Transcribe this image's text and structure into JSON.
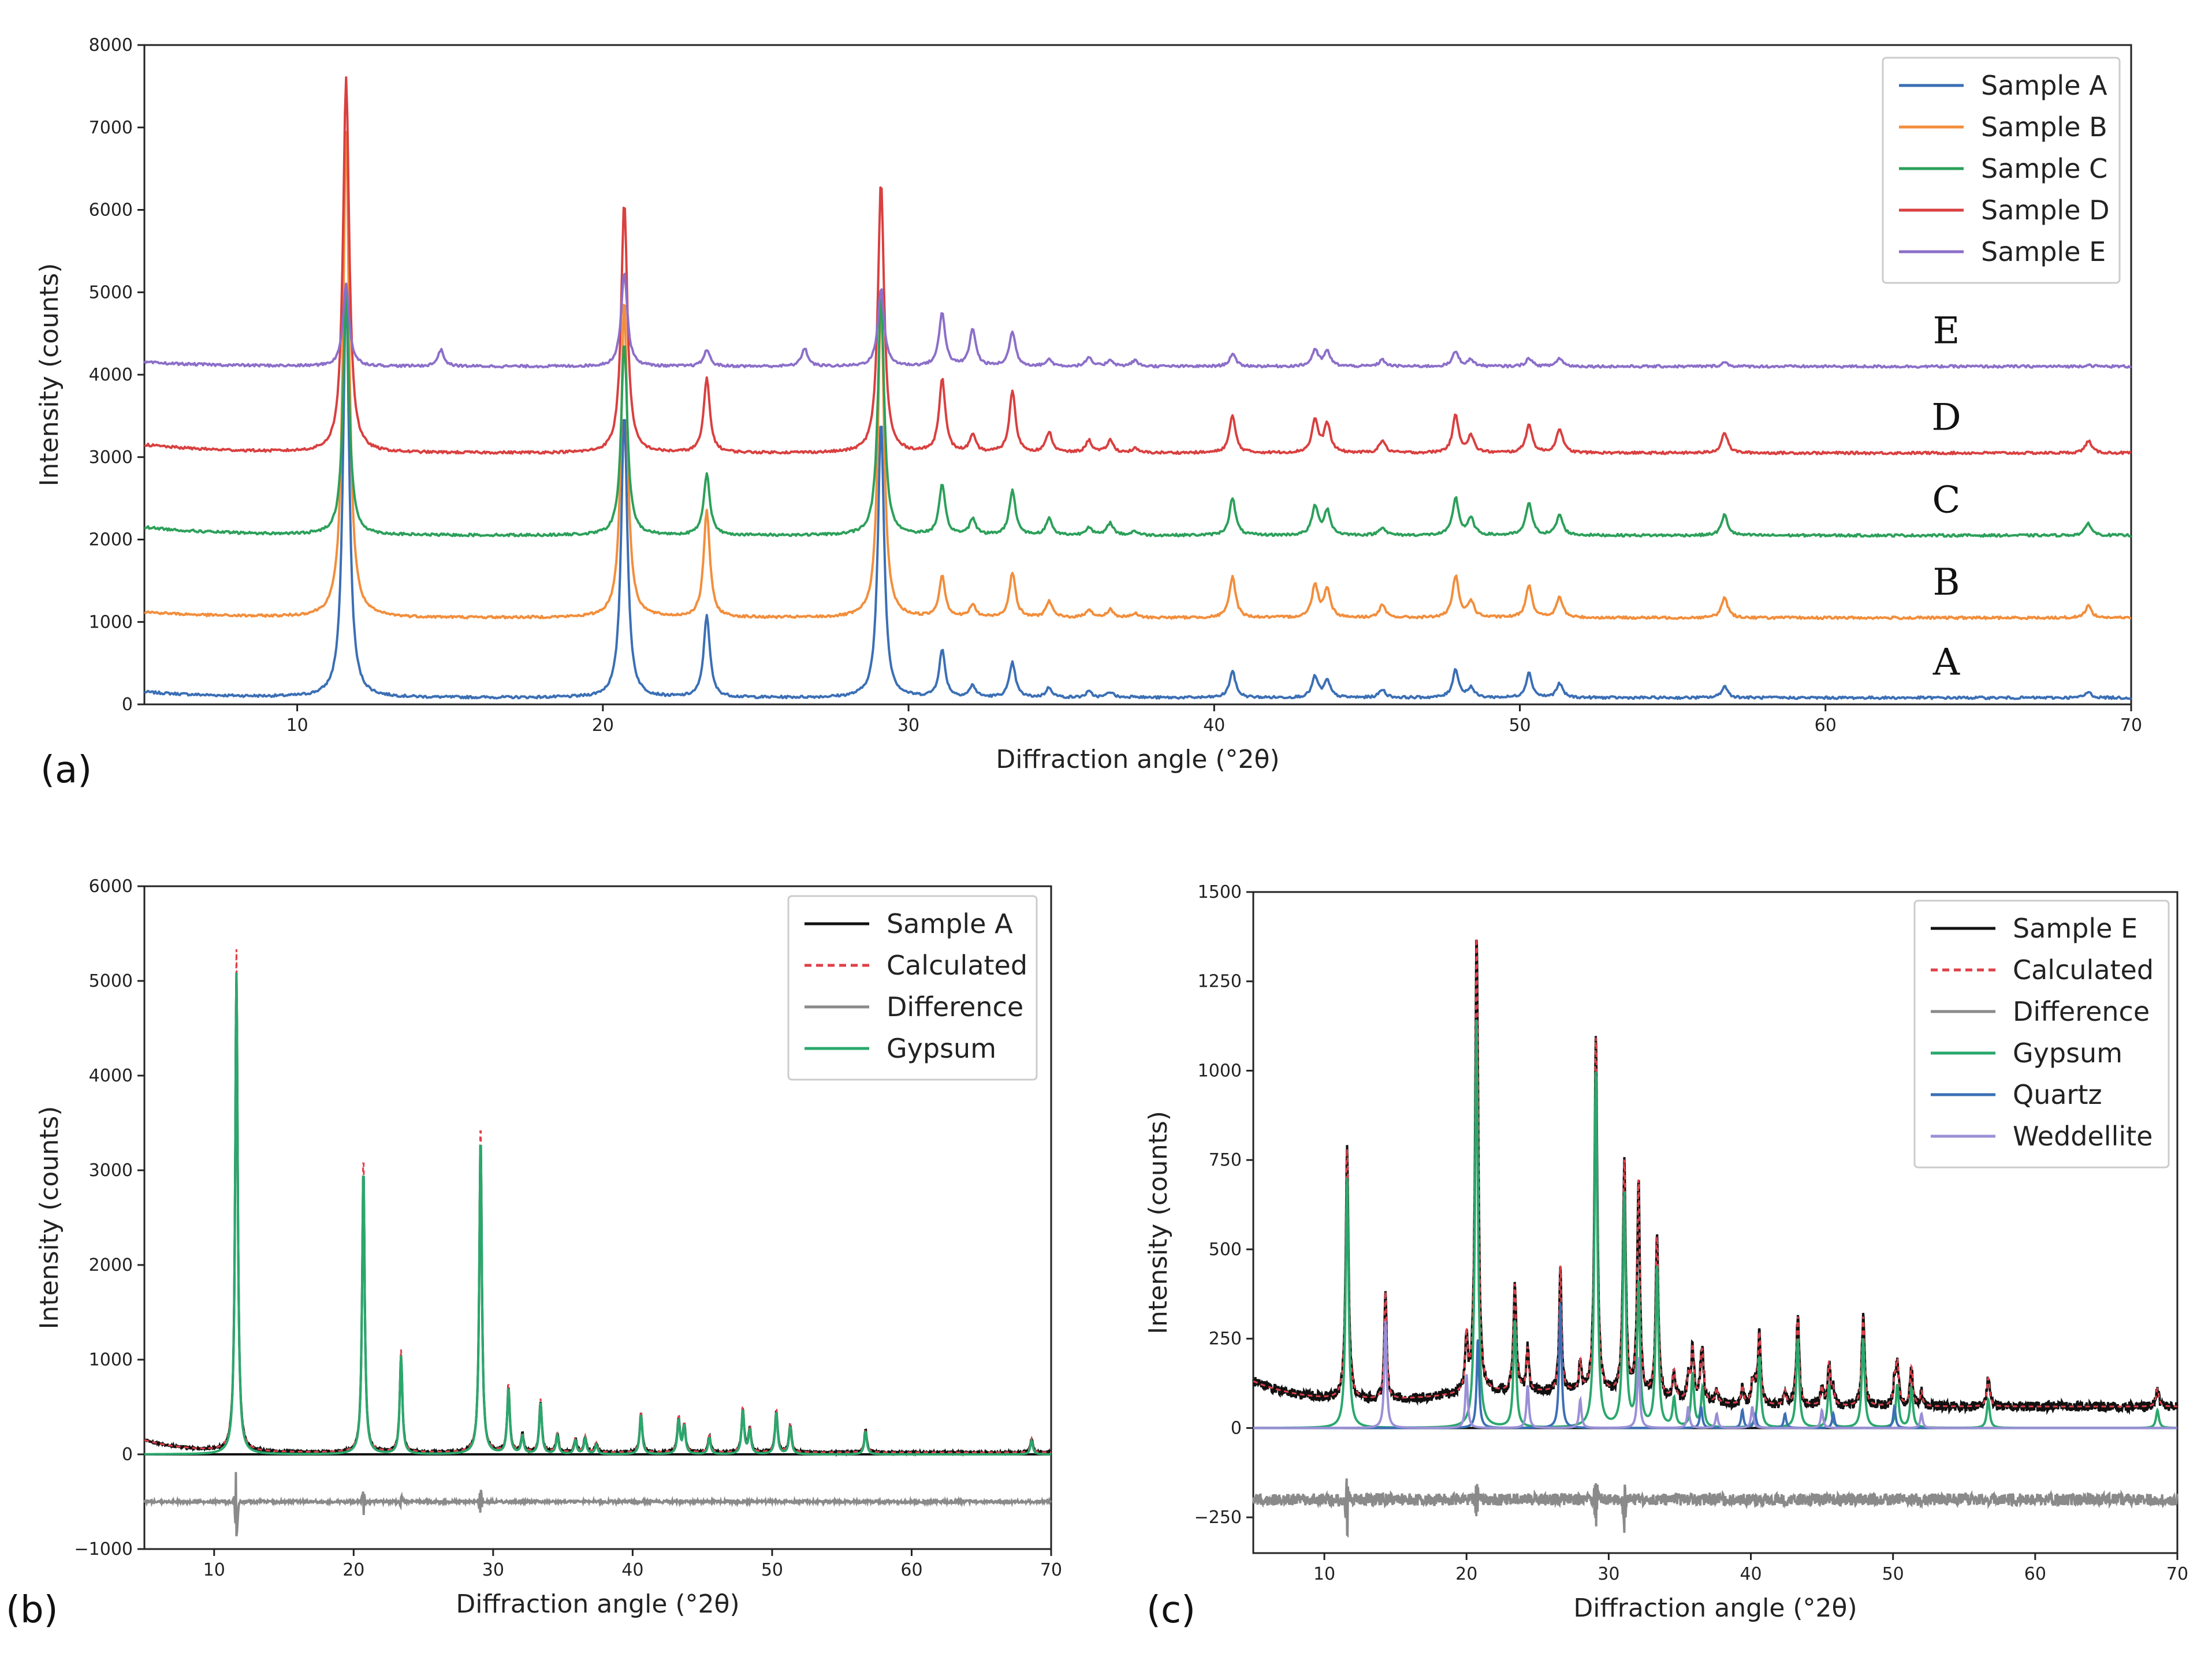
{
  "chart_data": [
    {
      "panel": "(a)",
      "type": "line",
      "xlabel": "Diffraction angle (°2θ)",
      "ylabel": "Intensity (counts)",
      "xlim": [
        5,
        70
      ],
      "ylim": [
        0,
        8000
      ],
      "xticks": [
        10,
        20,
        30,
        40,
        50,
        60,
        70
      ],
      "yticks": [
        0,
        1000,
        2000,
        3000,
        4000,
        5000,
        6000,
        7000,
        8000
      ],
      "legend_position": "top-right",
      "peak_positions": [
        11.6,
        14.7,
        20.7,
        23.4,
        26.6,
        29.1,
        31.1,
        32.1,
        33.4,
        34.6,
        35.9,
        36.6,
        37.4,
        40.6,
        43.3,
        43.7,
        45.5,
        47.9,
        48.4,
        50.3,
        51.3,
        56.7,
        68.6
      ],
      "series": [
        {
          "name": "Sample A",
          "trace_label": "A",
          "color": "#3b6fb5",
          "baseline": 80,
          "start": 150,
          "peaks": [
            [
              11.6,
              5050
            ],
            [
              20.7,
              3550
            ],
            [
              23.4,
              1080
            ],
            [
              29.1,
              3450
            ],
            [
              31.1,
              650
            ],
            [
              32.1,
              220
            ],
            [
              33.4,
              500
            ],
            [
              34.6,
              200
            ],
            [
              35.9,
              150
            ],
            [
              36.6,
              150
            ],
            [
              37.4,
              100
            ],
            [
              40.6,
              400
            ],
            [
              43.3,
              330
            ],
            [
              43.7,
              280
            ],
            [
              45.5,
              180
            ],
            [
              47.9,
              420
            ],
            [
              48.4,
              200
            ],
            [
              50.3,
              380
            ],
            [
              51.3,
              250
            ],
            [
              56.7,
              220
            ],
            [
              68.6,
              150
            ]
          ]
        },
        {
          "name": "Sample B",
          "trace_label": "B",
          "color": "#f28e3c",
          "baseline": 1050,
          "start": 1120,
          "peaks": [
            [
              11.6,
              6950
            ],
            [
              20.7,
              4950
            ],
            [
              23.4,
              2350
            ],
            [
              29.1,
              4950
            ],
            [
              31.1,
              1550
            ],
            [
              32.1,
              1200
            ],
            [
              33.4,
              1600
            ],
            [
              34.6,
              1250
            ],
            [
              35.9,
              1150
            ],
            [
              36.6,
              1150
            ],
            [
              37.4,
              1100
            ],
            [
              40.6,
              1550
            ],
            [
              43.3,
              1450
            ],
            [
              43.7,
              1400
            ],
            [
              45.5,
              1200
            ],
            [
              47.9,
              1550
            ],
            [
              48.4,
              1250
            ],
            [
              50.3,
              1450
            ],
            [
              51.3,
              1300
            ],
            [
              56.7,
              1300
            ],
            [
              68.6,
              1200
            ]
          ]
        },
        {
          "name": "Sample C",
          "trace_label": "C",
          "color": "#2ca05a",
          "baseline": 2050,
          "start": 2150,
          "peaks": [
            [
              11.6,
              4950
            ],
            [
              20.7,
              4400
            ],
            [
              23.4,
              2800
            ],
            [
              29.1,
              5000
            ],
            [
              31.1,
              2650
            ],
            [
              32.1,
              2250
            ],
            [
              33.4,
              2600
            ],
            [
              34.6,
              2250
            ],
            [
              35.9,
              2150
            ],
            [
              36.6,
              2200
            ],
            [
              37.4,
              2100
            ],
            [
              40.6,
              2500
            ],
            [
              43.3,
              2400
            ],
            [
              43.7,
              2350
            ],
            [
              45.5,
              2150
            ],
            [
              47.9,
              2500
            ],
            [
              48.4,
              2250
            ],
            [
              50.3,
              2450
            ],
            [
              51.3,
              2300
            ],
            [
              56.7,
              2300
            ],
            [
              68.6,
              2200
            ]
          ]
        },
        {
          "name": "Sample D",
          "trace_label": "D",
          "color": "#d94040",
          "baseline": 3050,
          "start": 3150,
          "peaks": [
            [
              11.6,
              7600
            ],
            [
              20.7,
              6100
            ],
            [
              23.4,
              3950
            ],
            [
              29.1,
              6350
            ],
            [
              31.1,
              3950
            ],
            [
              32.1,
              3250
            ],
            [
              33.4,
              3800
            ],
            [
              34.6,
              3300
            ],
            [
              35.9,
              3200
            ],
            [
              36.6,
              3200
            ],
            [
              37.4,
              3100
            ],
            [
              40.6,
              3500
            ],
            [
              43.3,
              3450
            ],
            [
              43.7,
              3400
            ],
            [
              45.5,
              3200
            ],
            [
              47.9,
              3500
            ],
            [
              48.4,
              3250
            ],
            [
              50.3,
              3400
            ],
            [
              51.3,
              3350
            ],
            [
              56.7,
              3300
            ],
            [
              68.6,
              3200
            ]
          ]
        },
        {
          "name": "Sample E",
          "trace_label": "E",
          "color": "#8c6fc9",
          "baseline": 4100,
          "start": 4150,
          "peaks": [
            [
              11.6,
              5100
            ],
            [
              14.7,
              4300
            ],
            [
              20.7,
              5250
            ],
            [
              23.4,
              4300
            ],
            [
              26.6,
              4320
            ],
            [
              29.1,
              5050
            ],
            [
              31.1,
              4750
            ],
            [
              32.1,
              4550
            ],
            [
              33.4,
              4520
            ],
            [
              34.6,
              4180
            ],
            [
              35.9,
              4200
            ],
            [
              36.6,
              4180
            ],
            [
              37.4,
              4170
            ],
            [
              40.6,
              4250
            ],
            [
              43.3,
              4300
            ],
            [
              43.7,
              4280
            ],
            [
              45.5,
              4180
            ],
            [
              47.9,
              4280
            ],
            [
              48.4,
              4180
            ],
            [
              50.3,
              4200
            ],
            [
              51.3,
              4200
            ],
            [
              56.7,
              4150
            ],
            [
              68.6,
              4120
            ]
          ]
        }
      ]
    },
    {
      "panel": "(b)",
      "type": "line",
      "xlabel": "Diffraction angle (°2θ)",
      "ylabel": "Intensity (counts)",
      "xlim": [
        5,
        70
      ],
      "ylim": [
        -1000,
        6000
      ],
      "xticks": [
        10,
        20,
        30,
        40,
        50,
        60,
        70
      ],
      "yticks": [
        -1000,
        0,
        1000,
        2000,
        3000,
        4000,
        5000,
        6000
      ],
      "legend_position": "top-right",
      "series": [
        {
          "name": "Sample A",
          "color": "#111111",
          "style": "solid"
        },
        {
          "name": "Calculated",
          "color": "#e0404a",
          "style": "dashed"
        },
        {
          "name": "Difference",
          "color": "#8a8a8a",
          "style": "solid",
          "offset": -500
        },
        {
          "name": "Gypsum",
          "color": "#2aa86c",
          "style": "solid"
        }
      ],
      "peaks": [
        [
          11.6,
          5300
        ],
        [
          20.7,
          3150
        ],
        [
          23.4,
          1080
        ],
        [
          29.1,
          3500
        ],
        [
          31.1,
          720
        ],
        [
          32.1,
          200
        ],
        [
          33.4,
          560
        ],
        [
          34.6,
          200
        ],
        [
          35.9,
          150
        ],
        [
          36.6,
          170
        ],
        [
          37.4,
          100
        ],
        [
          40.6,
          430
        ],
        [
          43.3,
          370
        ],
        [
          43.7,
          300
        ],
        [
          45.5,
          180
        ],
        [
          47.9,
          480
        ],
        [
          48.4,
          260
        ],
        [
          50.3,
          460
        ],
        [
          51.3,
          300
        ],
        [
          56.7,
          250
        ],
        [
          68.6,
          150
        ]
      ],
      "difference_spikes": [
        [
          11.6,
          -850,
          -150
        ],
        [
          20.7,
          -650,
          -400
        ],
        [
          23.4,
          -570,
          -440
        ],
        [
          29.1,
          -620,
          -380
        ]
      ]
    },
    {
      "panel": "(c)",
      "type": "line",
      "xlabel": "Diffraction angle (°2θ)",
      "ylabel": "Intensity (counts)",
      "xlim": [
        5,
        70
      ],
      "ylim": [
        -350,
        1500
      ],
      "xticks": [
        10,
        20,
        30,
        40,
        50,
        60,
        70
      ],
      "yticks": [
        -250,
        0,
        250,
        500,
        750,
        1000,
        1250,
        1500
      ],
      "legend_position": "top-right",
      "series": [
        {
          "name": "Sample E",
          "color": "#111111",
          "style": "solid"
        },
        {
          "name": "Calculated",
          "color": "#e0404a",
          "style": "dashed"
        },
        {
          "name": "Difference",
          "color": "#8a8a8a",
          "style": "solid",
          "offset": -200
        },
        {
          "name": "Gypsum",
          "color": "#2aa86c",
          "style": "solid"
        },
        {
          "name": "Quartz",
          "color": "#3b6fb5",
          "style": "solid"
        },
        {
          "name": "Weddellite",
          "color": "#9a8fd6",
          "style": "solid"
        }
      ],
      "gypsum_peaks": [
        [
          11.6,
          700
        ],
        [
          20.7,
          1150
        ],
        [
          23.4,
          300
        ],
        [
          29.1,
          1000
        ],
        [
          31.1,
          650
        ],
        [
          32.1,
          400
        ],
        [
          33.4,
          450
        ],
        [
          34.6,
          80
        ],
        [
          35.9,
          150
        ],
        [
          36.6,
          110
        ],
        [
          40.6,
          200
        ],
        [
          43.3,
          250
        ],
        [
          45.5,
          120
        ],
        [
          47.9,
          250
        ],
        [
          50.3,
          120
        ],
        [
          51.3,
          110
        ],
        [
          56.7,
          80
        ],
        [
          68.6,
          50
        ]
      ],
      "quartz_peaks": [
        [
          20.8,
          250
        ],
        [
          26.6,
          350
        ],
        [
          36.5,
          60
        ],
        [
          39.4,
          50
        ],
        [
          40.3,
          40
        ],
        [
          42.4,
          40
        ],
        [
          45.8,
          40
        ],
        [
          50.1,
          60
        ]
      ],
      "weddellite_peaks": [
        [
          14.3,
          300
        ],
        [
          20.0,
          150
        ],
        [
          24.3,
          120
        ],
        [
          28.0,
          80
        ],
        [
          32.1,
          200
        ],
        [
          35.6,
          60
        ],
        [
          37.6,
          40
        ],
        [
          40.1,
          60
        ],
        [
          45.0,
          50
        ],
        [
          52.0,
          40
        ]
      ],
      "difference_spikes": [
        [
          11.6,
          -300,
          -150
        ],
        [
          20.7,
          -250,
          -160
        ],
        [
          29.1,
          -260,
          -140
        ],
        [
          31.1,
          -280,
          -170
        ]
      ]
    }
  ],
  "labels": {
    "panel_a": "(a)",
    "panel_b": "(b)",
    "panel_c": "(c)"
  }
}
